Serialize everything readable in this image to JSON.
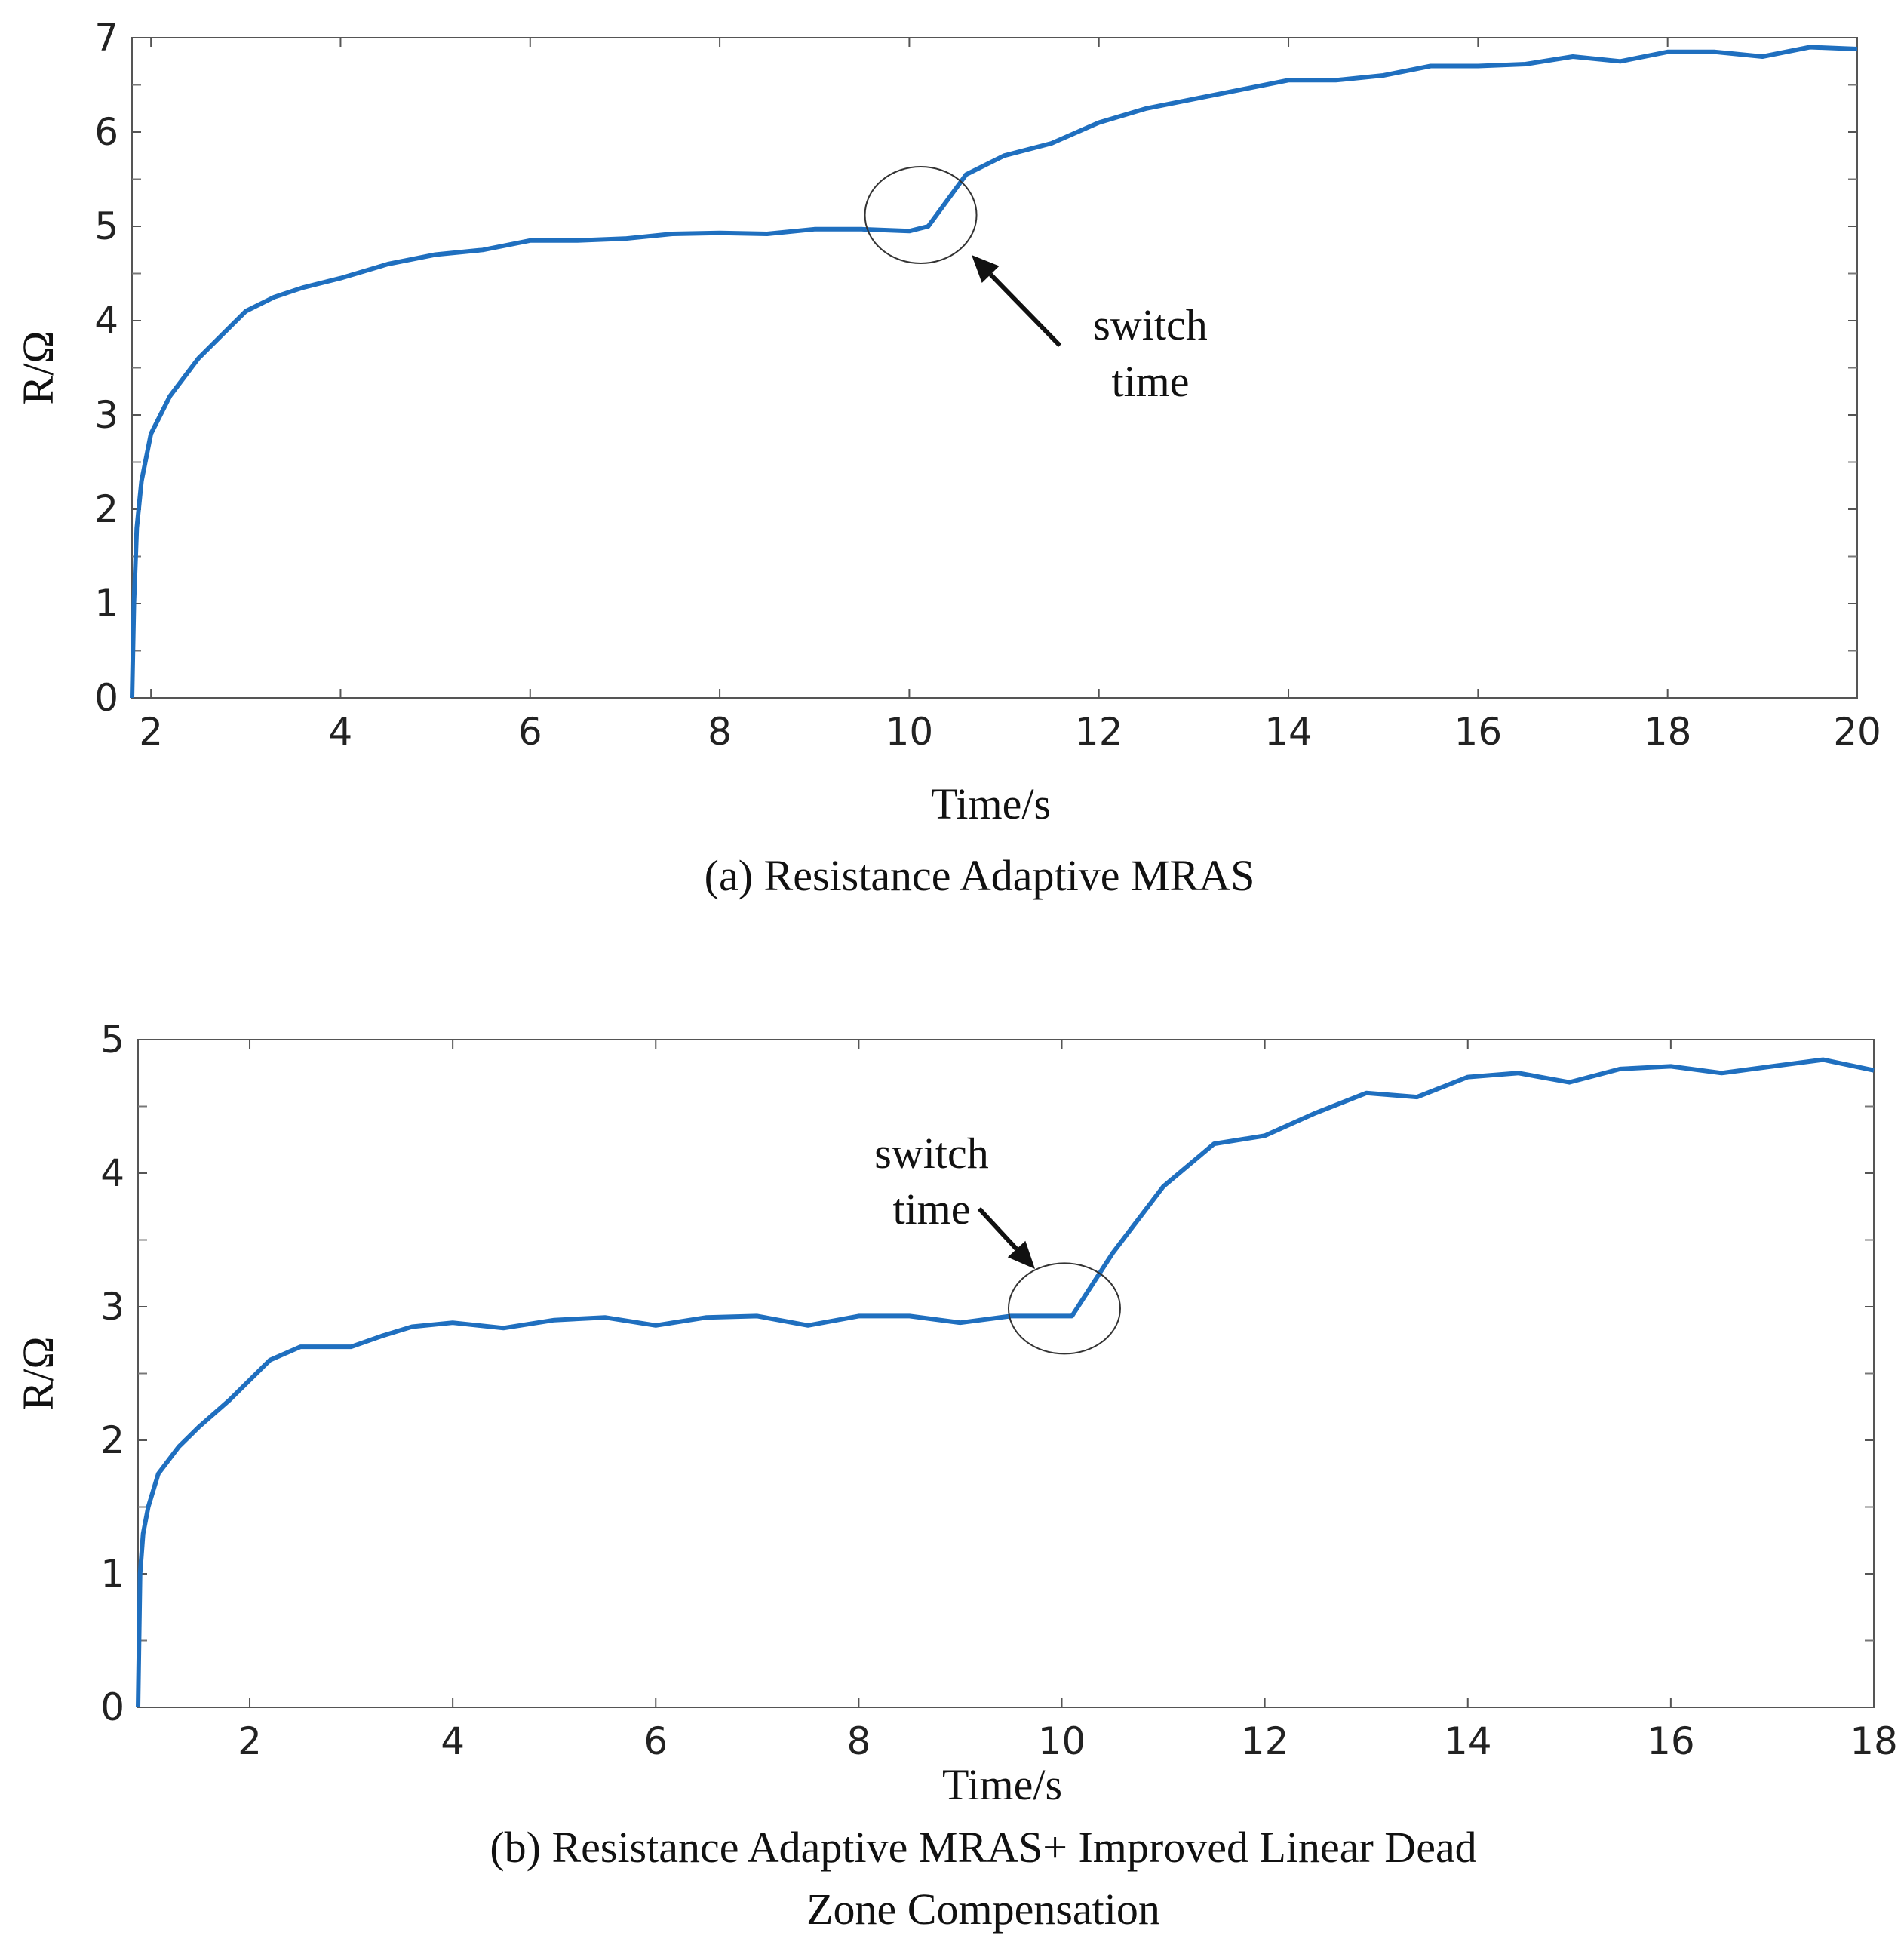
{
  "chart_data": [
    {
      "type": "line",
      "panel": "a",
      "caption": "(a) Resistance Adaptive MRAS",
      "xlabel": "Time/s",
      "ylabel": "R/Ω",
      "xlim": [
        1.8,
        20
      ],
      "ylim": [
        0,
        7
      ],
      "xticks": [
        "2",
        "4",
        "6",
        "8",
        "10",
        "12",
        "14",
        "16",
        "18",
        "20"
      ],
      "yticks": [
        "0",
        "1",
        "2",
        "3",
        "4",
        "5",
        "6",
        "7"
      ],
      "line_color": "#1f6fbf",
      "annotation": {
        "lines": [
          "switch",
          "time"
        ],
        "point": [
          10.2,
          5.0
        ]
      },
      "series": [
        {
          "name": "R",
          "x": [
            1.8,
            1.82,
            1.85,
            1.9,
            2.0,
            2.2,
            2.5,
            2.8,
            3.0,
            3.3,
            3.6,
            4.0,
            4.5,
            5.0,
            5.5,
            6.0,
            6.5,
            7.0,
            7.5,
            8.0,
            8.5,
            9.0,
            9.5,
            10.0,
            10.2,
            10.6,
            11.0,
            11.5,
            12.0,
            12.5,
            13.0,
            13.5,
            14.0,
            14.5,
            15.0,
            15.5,
            16.0,
            16.5,
            17.0,
            17.5,
            18.0,
            18.5,
            19.0,
            19.5,
            20.0
          ],
          "y": [
            0.0,
            1.0,
            1.8,
            2.3,
            2.8,
            3.2,
            3.6,
            3.9,
            4.1,
            4.25,
            4.35,
            4.45,
            4.6,
            4.7,
            4.75,
            4.85,
            4.85,
            4.87,
            4.92,
            4.93,
            4.92,
            4.97,
            4.97,
            4.95,
            5.0,
            5.55,
            5.75,
            5.88,
            6.1,
            6.25,
            6.35,
            6.45,
            6.55,
            6.55,
            6.6,
            6.7,
            6.7,
            6.72,
            6.8,
            6.75,
            6.85,
            6.85,
            6.8,
            6.9,
            6.88
          ]
        }
      ]
    },
    {
      "type": "line",
      "panel": "b",
      "caption": "(b) Resistance Adaptive MRAS+ Improved Linear Dead Zone Compensation",
      "caption_lines": [
        "(b) Resistance Adaptive MRAS+ Improved Linear Dead",
        "Zone Compensation"
      ],
      "xlabel": "Time/s",
      "ylabel": "R/Ω",
      "xlim": [
        0.9,
        18
      ],
      "ylim": [
        0,
        5
      ],
      "xticks": [
        "2",
        "4",
        "6",
        "8",
        "10",
        "12",
        "14",
        "16",
        "18"
      ],
      "yticks": [
        "0",
        "1",
        "2",
        "3",
        "4",
        "5"
      ],
      "line_color": "#1f6fbf",
      "annotation": {
        "lines": [
          "switch",
          "time"
        ],
        "point": [
          10.1,
          2.93
        ]
      },
      "series": [
        {
          "name": "R",
          "x": [
            0.9,
            0.92,
            0.95,
            1.0,
            1.1,
            1.3,
            1.5,
            1.8,
            2.0,
            2.2,
            2.5,
            2.8,
            3.0,
            3.3,
            3.6,
            4.0,
            4.5,
            5.0,
            5.5,
            6.0,
            6.5,
            7.0,
            7.5,
            8.0,
            8.5,
            9.0,
            9.5,
            10.1,
            10.5,
            11.0,
            11.5,
            12.0,
            12.5,
            13.0,
            13.5,
            14.0,
            14.5,
            15.0,
            15.5,
            16.0,
            16.5,
            17.0,
            17.5,
            18.0
          ],
          "y": [
            0.0,
            1.0,
            1.3,
            1.5,
            1.75,
            1.95,
            2.1,
            2.3,
            2.45,
            2.6,
            2.7,
            2.7,
            2.7,
            2.78,
            2.85,
            2.88,
            2.84,
            2.9,
            2.92,
            2.86,
            2.92,
            2.93,
            2.86,
            2.93,
            2.93,
            2.88,
            2.93,
            2.93,
            3.4,
            3.9,
            4.22,
            4.28,
            4.45,
            4.6,
            4.57,
            4.72,
            4.75,
            4.68,
            4.78,
            4.8,
            4.75,
            4.8,
            4.85,
            4.77
          ]
        }
      ]
    }
  ]
}
